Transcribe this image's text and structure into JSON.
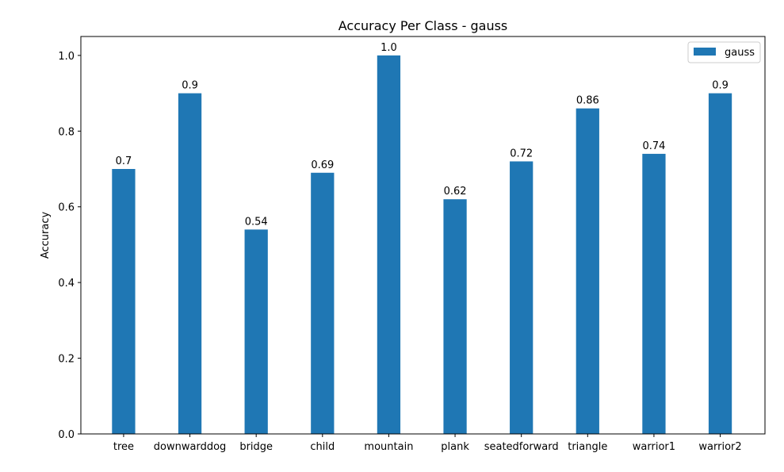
{
  "chart_data": {
    "type": "bar",
    "title": "Accuracy Per Class - gauss",
    "xlabel": "",
    "ylabel": "Accuracy",
    "categories": [
      "tree",
      "downwarddog",
      "bridge",
      "child",
      "mountain",
      "plank",
      "seatedforward",
      "triangle",
      "warrior1",
      "warrior2"
    ],
    "series": [
      {
        "name": "gauss",
        "values": [
          0.7,
          0.9,
          0.54,
          0.69,
          1.0,
          0.62,
          0.72,
          0.86,
          0.74,
          0.9
        ],
        "labels": [
          "0.7",
          "0.9",
          "0.54",
          "0.69",
          "1.0",
          "0.62",
          "0.72",
          "0.86",
          "0.74",
          "0.9"
        ]
      }
    ],
    "ylim": [
      0,
      1.05
    ],
    "yticks": [
      "0.0",
      "0.2",
      "0.4",
      "0.6",
      "0.8",
      "1.0"
    ],
    "grid": false,
    "legend_position": "top-right",
    "bar_color": "#1f77b4"
  }
}
